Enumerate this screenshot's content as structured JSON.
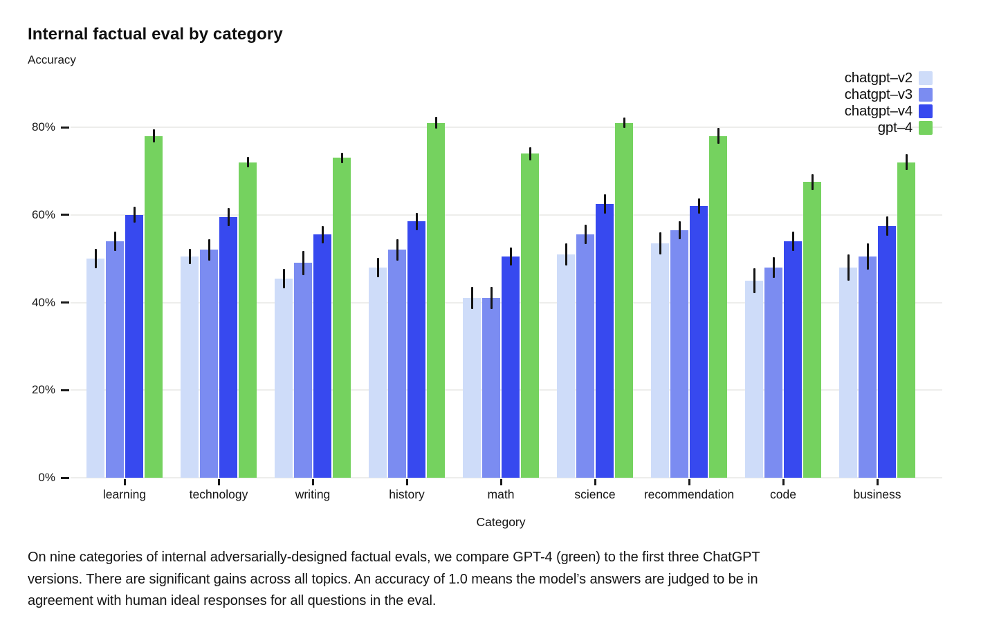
{
  "header": {
    "title": "Internal factual eval by category",
    "subtitle": "Accuracy"
  },
  "legend": {
    "position": "top-right",
    "items": [
      {
        "label": "chatgpt–v2",
        "color": "#cedcf9"
      },
      {
        "label": "chatgpt–v3",
        "color": "#7b8cf1"
      },
      {
        "label": "chatgpt–v4",
        "color": "#3749ef"
      },
      {
        "label": "gpt–4",
        "color": "#75d25f"
      }
    ]
  },
  "chart_data": {
    "type": "bar",
    "title": "Internal factual eval by category",
    "ylabel": "Accuracy",
    "xlabel": "Category",
    "categories": [
      "learning",
      "technology",
      "writing",
      "history",
      "math",
      "science",
      "recommendation",
      "code",
      "business"
    ],
    "series": [
      {
        "name": "chatgpt-v2",
        "color": "#cedcf9",
        "values": [
          0.5,
          0.505,
          0.455,
          0.48,
          0.41,
          0.51,
          0.535,
          0.45,
          0.48
        ],
        "errors": [
          0.022,
          0.018,
          0.022,
          0.022,
          0.025,
          0.025,
          0.025,
          0.028,
          0.03
        ]
      },
      {
        "name": "chatgpt-v3",
        "color": "#7b8cf1",
        "values": [
          0.54,
          0.52,
          0.49,
          0.52,
          0.41,
          0.555,
          0.565,
          0.48,
          0.505
        ],
        "errors": [
          0.022,
          0.025,
          0.028,
          0.025,
          0.025,
          0.022,
          0.02,
          0.024,
          0.03
        ]
      },
      {
        "name": "chatgpt-v4",
        "color": "#3749ef",
        "values": [
          0.6,
          0.595,
          0.555,
          0.585,
          0.505,
          0.625,
          0.62,
          0.54,
          0.575
        ],
        "errors": [
          0.018,
          0.02,
          0.02,
          0.02,
          0.02,
          0.022,
          0.018,
          0.022,
          0.022
        ]
      },
      {
        "name": "gpt-4",
        "color": "#75d25f",
        "values": [
          0.78,
          0.72,
          0.73,
          0.81,
          0.74,
          0.81,
          0.78,
          0.675,
          0.72
        ],
        "errors": [
          0.015,
          0.012,
          0.012,
          0.013,
          0.015,
          0.012,
          0.018,
          0.018,
          0.018
        ]
      }
    ],
    "y_ticks": [
      "0%",
      "20%",
      "40%",
      "60%",
      "80%"
    ],
    "y_tick_values": [
      0,
      0.2,
      0.4,
      0.6,
      0.8
    ],
    "ylim": [
      0,
      0.85
    ],
    "grid": true,
    "error_bars": true,
    "legend_position": "top-right"
  },
  "caption": {
    "lines": [
      "On nine categories of internal adversarially-designed factual evals, we compare GPT-4 (green) to the first three ChatGPT",
      "versions. There are significant gains across all topics. An accuracy of 1.0 means the model’s answers are judged to be in",
      "agreement with human ideal responses for all questions in the eval."
    ],
    "full_text": "On nine categories of internal adversarially-designed factual evals, we compare GPT-4 (green) to the first three ChatGPT versions. There are significant gains across all topics. An accuracy of 1.0 means the model’s answers are judged to be in agreement with human ideal responses for all questions in the eval."
  }
}
